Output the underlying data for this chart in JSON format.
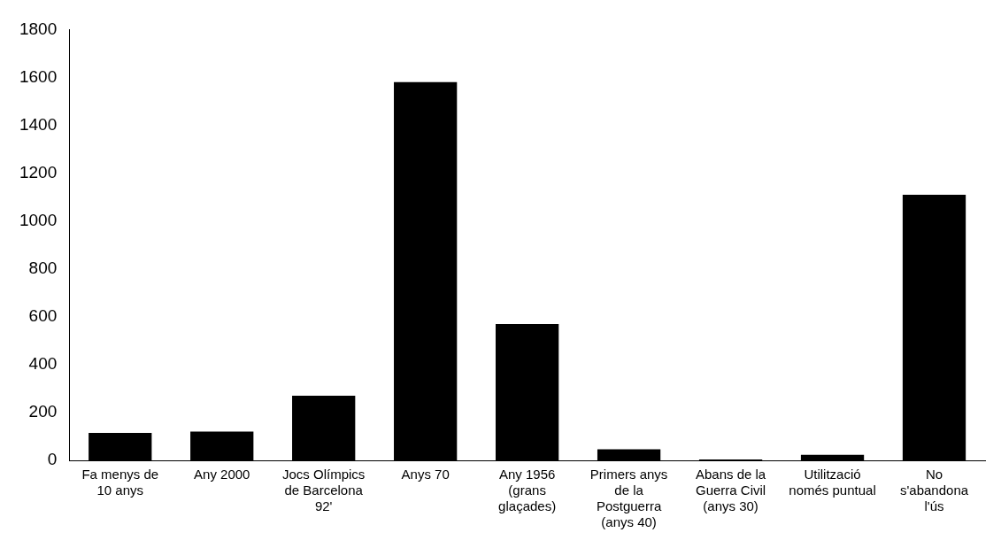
{
  "chart_data": {
    "type": "bar",
    "categories": [
      "Fa menys de 10 anys",
      "Any 2000",
      "Jocs Olímpics de Barcelona 92'",
      "Anys 70",
      "Any 1956 (grans glaçades)",
      "Primers anys de la Postguerra (anys 40)",
      "Abans de la Guerra Civil (anys 30)",
      "Utilització només puntual",
      "No s'abandona l'ús"
    ],
    "values": [
      115,
      120,
      270,
      1580,
      570,
      46,
      4,
      23,
      1110
    ],
    "color": "#000000",
    "ylim": [
      0,
      1800
    ],
    "yticks": [
      0,
      200,
      400,
      600,
      800,
      1000,
      1200,
      1400,
      1600,
      1800
    ],
    "grid": false,
    "legend": false
  }
}
